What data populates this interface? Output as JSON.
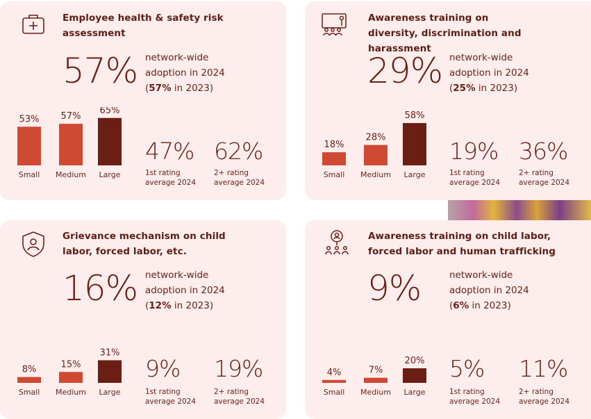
{
  "colors": {
    "card_bg": "#fdeeed",
    "text": "#6b1f14",
    "bar_small": "#cf4a33",
    "bar_medium": "#cf4a33",
    "bar_large": "#6b1f14"
  },
  "cards": [
    {
      "icon": "first-aid-kit-icon",
      "title": "Employee health & safety risk assessment",
      "big_value": "57%",
      "adoption_line1": "network-wide",
      "adoption_line2": "adoption in 2024",
      "prev_value": "57%",
      "prev_suffix": " in 2023)",
      "stat1_value": "47%",
      "stat1_label1": "1st rating",
      "stat1_label2": "average 2024",
      "stat2_value": "62%",
      "stat2_label1": "2+ rating",
      "stat2_label2": "average 2024"
    },
    {
      "icon": "presentation-training-icon",
      "title": "Awareness training on diversity, discrimination and harassment",
      "big_value": "29%",
      "adoption_line1": "network-wide",
      "adoption_line2": "adoption in 2024",
      "prev_value": "25%",
      "prev_suffix": " in 2023)",
      "stat1_value": "19%",
      "stat1_label1": "1st rating",
      "stat1_label2": "average 2024",
      "stat2_value": "36%",
      "stat2_label1": "2+ rating",
      "stat2_label2": "average 2024"
    },
    {
      "icon": "shield-person-icon",
      "title": "Grievance mechanism on child labor, forced labor, etc.",
      "big_value": "16%",
      "adoption_line1": "network-wide",
      "adoption_line2": "adoption in 2024",
      "prev_value": "12%",
      "prev_suffix": " in 2023)",
      "stat1_value": "9%",
      "stat1_label1": "1st rating",
      "stat1_label2": "average 2024",
      "stat2_value": "19%",
      "stat2_label1": "2+ rating",
      "stat2_label2": "average 2024"
    },
    {
      "icon": "magnifier-people-icon",
      "title": "Awareness training on child labor, forced labor and human trafficking",
      "big_value": "9%",
      "adoption_line1": "network-wide",
      "adoption_line2": "adoption in 2024",
      "prev_value": "6%",
      "prev_suffix": " in 2023)",
      "stat1_value": "5%",
      "stat1_label1": "1st rating",
      "stat1_label2": "average 2024",
      "stat2_value": "11%",
      "stat2_label1": "2+ rating",
      "stat2_label2": "average 2024"
    }
  ],
  "chart_data": [
    {
      "type": "bar",
      "title": "",
      "categories": [
        "Small",
        "Medium",
        "Large"
      ],
      "values": [
        53,
        57,
        65
      ],
      "labels": [
        "53%",
        "57%",
        "65%"
      ],
      "ylim": [
        0,
        100
      ]
    },
    {
      "type": "bar",
      "title": "",
      "categories": [
        "Small",
        "Medium",
        "Large"
      ],
      "values": [
        18,
        28,
        58
      ],
      "labels": [
        "18%",
        "28%",
        "58%"
      ],
      "ylim": [
        0,
        100
      ]
    },
    {
      "type": "bar",
      "title": "",
      "categories": [
        "Small",
        "Medium",
        "Large"
      ],
      "values": [
        8,
        15,
        31
      ],
      "labels": [
        "8%",
        "15%",
        "31%"
      ],
      "ylim": [
        0,
        100
      ]
    },
    {
      "type": "bar",
      "title": "",
      "categories": [
        "Small",
        "Medium",
        "Large"
      ],
      "values": [
        4,
        7,
        20
      ],
      "labels": [
        "4%",
        "7%",
        "20%"
      ],
      "ylim": [
        0,
        100
      ]
    }
  ]
}
